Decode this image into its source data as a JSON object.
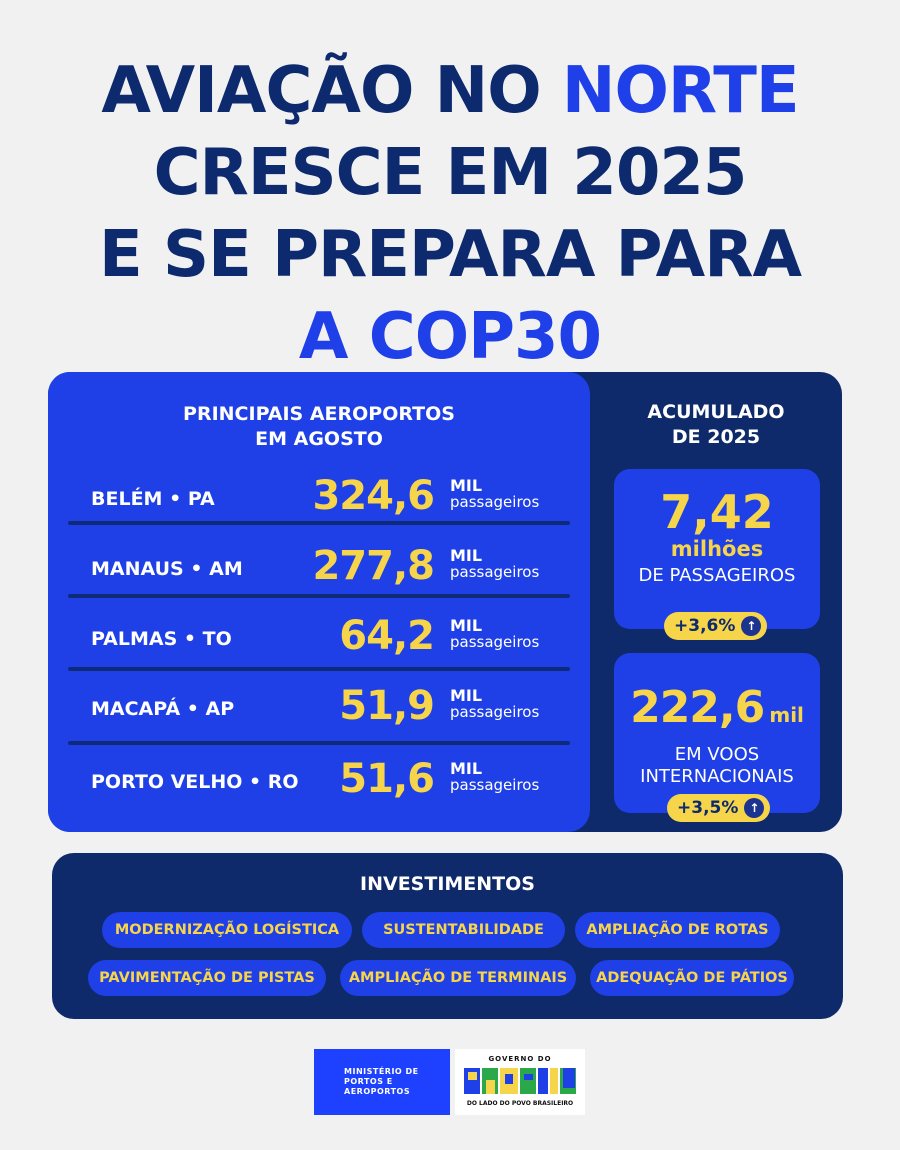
{
  "headline": {
    "line1_a": "AVIAÇÃO NO ",
    "line1_b": "NORTE",
    "line2": "CRESCE EM 2025",
    "line3": "E SE PREPARA PARA",
    "line4": "A COP30"
  },
  "airports": {
    "title_line1": "PRINCIPAIS AEROPORTOS",
    "title_line2": "EM AGOSTO",
    "unit_top": "MIL",
    "unit_bottom": "passageiros",
    "items": [
      {
        "name": "BELÉM • PA",
        "value": "324,6"
      },
      {
        "name": "MANAUS • AM",
        "value": "277,8"
      },
      {
        "name": "PALMAS • TO",
        "value": "64,2"
      },
      {
        "name": "MACAPÁ • AP",
        "value": "51,9"
      },
      {
        "name": "PORTO VELHO • RO",
        "value": "51,6"
      }
    ]
  },
  "accumulated": {
    "title_line1": "ACUMULADO",
    "title_line2": "DE 2025",
    "passengers": {
      "value": "7,42",
      "unit": "milhões",
      "label": "DE PASSAGEIROS",
      "growth": "+3,6%"
    },
    "international": {
      "value": "222,6",
      "unit": "mil",
      "label_line1": "EM VOOS",
      "label_line2": "INTERNACIONAIS",
      "growth": "+3,5%"
    }
  },
  "investments": {
    "title": "INVESTIMENTOS",
    "tags": [
      "MODERNIZAÇÃO LOGÍSTICA",
      "SUSTENTABILIDADE",
      "AMPLIAÇÃO DE ROTAS",
      "PAVIMENTAÇÃO DE PISTAS",
      "AMPLIAÇÃO DE TERMINAIS",
      "ADEQUAÇÃO DE PÁTIOS"
    ]
  },
  "footer": {
    "ministry_line1": "MINISTÉRIO DE",
    "ministry_line2": "PORTOS E",
    "ministry_line3": "AEROPORTOS",
    "gov_top": "GOVERNO DO",
    "gov_main": "BRASIL",
    "gov_bottom": "DO LADO DO POVO BRASILEIRO"
  },
  "colors": {
    "navy": "#0f2a6a",
    "blue": "#1e40e6",
    "yellow": "#f7d54a",
    "background": "#f1f1f1"
  },
  "icons": {
    "growth_arrow": "arrow-up-circle-icon"
  }
}
